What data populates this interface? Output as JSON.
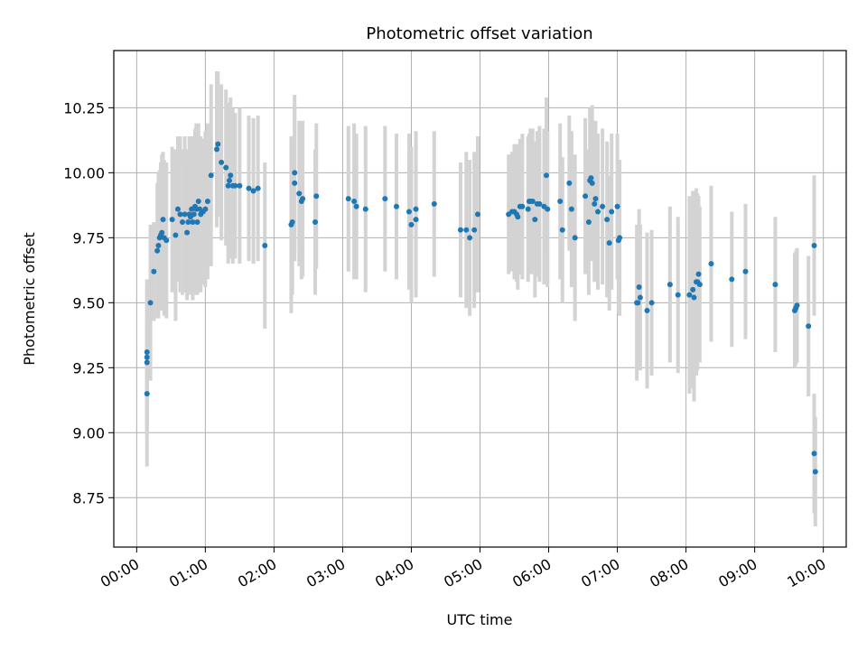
{
  "chart_data": {
    "type": "scatter",
    "title": "Photometric offset variation",
    "xlabel": "UTC time",
    "ylabel": "Photometric offset",
    "xlim": [
      "-00:20",
      "10:20"
    ],
    "ylim": [
      8.56,
      10.47
    ],
    "x_ticks": [
      "00:00",
      "01:00",
      "02:00",
      "03:00",
      "04:00",
      "05:00",
      "06:00",
      "07:00",
      "08:00",
      "09:00",
      "10:00"
    ],
    "y_ticks": [
      "8.75",
      "9.00",
      "9.25",
      "9.50",
      "9.75",
      "10.00",
      "10.25"
    ],
    "grid": true,
    "marker_color": "#1f77b4",
    "errorbar_color": "#d3d3d3",
    "columns": [
      "time",
      "offset",
      "error"
    ],
    "points": [
      [
        "00:09",
        9.15,
        0.28
      ],
      [
        "00:09",
        9.27,
        0.28
      ],
      [
        "00:09",
        9.29,
        0.28
      ],
      [
        "00:09",
        9.31,
        0.28
      ],
      [
        "00:12",
        9.5,
        0.3
      ],
      [
        "00:15",
        9.62,
        0.19
      ],
      [
        "00:18",
        9.7,
        0.26
      ],
      [
        "00:19",
        9.72,
        0.28
      ],
      [
        "00:20",
        9.75,
        0.26
      ],
      [
        "00:21",
        9.76,
        0.28
      ],
      [
        "00:22",
        9.77,
        0.3
      ],
      [
        "00:23",
        9.82,
        0.26
      ],
      [
        "00:24",
        9.75,
        0.3
      ],
      [
        "00:26",
        9.74,
        0.3
      ],
      [
        "00:31",
        9.82,
        0.28
      ],
      [
        "00:34",
        9.76,
        0.33
      ],
      [
        "00:36",
        9.86,
        0.28
      ],
      [
        "00:38",
        9.84,
        0.3
      ],
      [
        "00:40",
        9.81,
        0.28
      ],
      [
        "00:42",
        9.84,
        0.3
      ],
      [
        "00:44",
        9.77,
        0.26
      ],
      [
        "00:45",
        9.81,
        0.28
      ],
      [
        "00:46",
        9.84,
        0.3
      ],
      [
        "00:47",
        9.83,
        0.3
      ],
      [
        "00:48",
        9.86,
        0.28
      ],
      [
        "00:49",
        9.81,
        0.3
      ],
      [
        "00:50",
        9.84,
        0.28
      ],
      [
        "00:51",
        9.87,
        0.3
      ],
      [
        "00:52",
        9.86,
        0.33
      ],
      [
        "00:53",
        9.81,
        0.28
      ],
      [
        "00:54",
        9.89,
        0.3
      ],
      [
        "00:55",
        9.86,
        0.28
      ],
      [
        "00:56",
        9.84,
        0.3
      ],
      [
        "00:58",
        9.85,
        0.28
      ],
      [
        "01:00",
        9.86,
        0.3
      ],
      [
        "01:02",
        9.89,
        0.3
      ],
      [
        "01:05",
        9.99,
        0.35
      ],
      [
        "01:10",
        10.09,
        0.3
      ],
      [
        "01:11",
        10.11,
        0.28
      ],
      [
        "01:14",
        10.04,
        0.3
      ],
      [
        "01:18",
        10.02,
        0.3
      ],
      [
        "01:20",
        9.95,
        0.3
      ],
      [
        "01:21",
        9.97,
        0.3
      ],
      [
        "01:22",
        9.99,
        0.3
      ],
      [
        "01:24",
        9.95,
        0.3
      ],
      [
        "01:26",
        9.95,
        0.28
      ],
      [
        "01:30",
        9.95,
        0.3
      ],
      [
        "01:38",
        9.94,
        0.28
      ],
      [
        "01:42",
        9.93,
        0.28
      ],
      [
        "01:46",
        9.94,
        0.28
      ],
      [
        "01:52",
        9.72,
        0.32
      ],
      [
        "02:15",
        9.8,
        0.34
      ],
      [
        "02:16",
        9.81,
        0.28
      ],
      [
        "02:18",
        9.96,
        0.3
      ],
      [
        "02:18",
        10.0,
        0.3
      ],
      [
        "02:22",
        9.92,
        0.28
      ],
      [
        "02:24",
        9.89,
        0.3
      ],
      [
        "02:25",
        9.9,
        0.3
      ],
      [
        "02:36",
        9.81,
        0.28
      ],
      [
        "02:37",
        9.91,
        0.28
      ],
      [
        "03:05",
        9.9,
        0.28
      ],
      [
        "03:10",
        9.89,
        0.3
      ],
      [
        "03:12",
        9.87,
        0.28
      ],
      [
        "03:20",
        9.86,
        0.32
      ],
      [
        "03:37",
        9.9,
        0.28
      ],
      [
        "03:47",
        9.87,
        0.28
      ],
      [
        "03:58",
        9.85,
        0.3
      ],
      [
        "04:00",
        9.8,
        0.3
      ],
      [
        "04:04",
        9.82,
        0.3
      ],
      [
        "04:04",
        9.86,
        0.3
      ],
      [
        "04:20",
        9.88,
        0.28
      ],
      [
        "04:43",
        9.78,
        0.26
      ],
      [
        "04:48",
        9.78,
        0.3
      ],
      [
        "04:51",
        9.75,
        0.3
      ],
      [
        "04:55",
        9.78,
        0.3
      ],
      [
        "04:58",
        9.84,
        0.3
      ],
      [
        "05:25",
        9.84,
        0.23
      ],
      [
        "05:28",
        9.85,
        0.23
      ],
      [
        "05:30",
        9.85,
        0.26
      ],
      [
        "05:32",
        9.84,
        0.26
      ],
      [
        "05:33",
        9.83,
        0.28
      ],
      [
        "05:35",
        9.87,
        0.26
      ],
      [
        "05:37",
        9.87,
        0.28
      ],
      [
        "05:42",
        9.86,
        0.28
      ],
      [
        "05:43",
        9.89,
        0.26
      ],
      [
        "05:44",
        9.89,
        0.28
      ],
      [
        "05:46",
        9.89,
        0.28
      ],
      [
        "05:48",
        9.82,
        0.3
      ],
      [
        "05:50",
        9.88,
        0.28
      ],
      [
        "05:52",
        9.88,
        0.3
      ],
      [
        "05:56",
        9.87,
        0.3
      ],
      [
        "05:58",
        9.99,
        0.3
      ],
      [
        "05:59",
        9.86,
        0.3
      ],
      [
        "06:10",
        9.89,
        0.3
      ],
      [
        "06:12",
        9.78,
        0.28
      ],
      [
        "06:18",
        9.96,
        0.26
      ],
      [
        "06:20",
        9.86,
        0.3
      ],
      [
        "06:23",
        9.75,
        0.32
      ],
      [
        "06:32",
        9.91,
        0.3
      ],
      [
        "06:35",
        9.81,
        0.28
      ],
      [
        "06:36",
        9.97,
        0.28
      ],
      [
        "06:37",
        9.98,
        0.26
      ],
      [
        "06:38",
        9.96,
        0.3
      ],
      [
        "06:40",
        9.88,
        0.3
      ],
      [
        "06:41",
        9.9,
        0.3
      ],
      [
        "06:43",
        9.85,
        0.3
      ],
      [
        "06:47",
        9.87,
        0.3
      ],
      [
        "06:51",
        9.82,
        0.3
      ],
      [
        "06:53",
        9.73,
        0.26
      ],
      [
        "06:55",
        9.85,
        0.3
      ],
      [
        "07:00",
        9.87,
        0.28
      ],
      [
        "07:01",
        9.74,
        0.28
      ],
      [
        "07:02",
        9.75,
        0.3
      ],
      [
        "07:17",
        9.5,
        0.3
      ],
      [
        "07:18",
        9.5,
        0.26
      ],
      [
        "07:19",
        9.56,
        0.3
      ],
      [
        "07:20",
        9.52,
        0.28
      ],
      [
        "07:26",
        9.47,
        0.3
      ],
      [
        "07:30",
        9.5,
        0.28
      ],
      [
        "07:46",
        9.57,
        0.3
      ],
      [
        "07:53",
        9.53,
        0.3
      ],
      [
        "08:03",
        9.53,
        0.38
      ],
      [
        "08:06",
        9.55,
        0.38
      ],
      [
        "08:07",
        9.52,
        0.4
      ],
      [
        "08:09",
        9.58,
        0.36
      ],
      [
        "08:10",
        9.58,
        0.34
      ],
      [
        "08:11",
        9.61,
        0.3
      ],
      [
        "08:12",
        9.57,
        0.3
      ],
      [
        "08:22",
        9.65,
        0.3
      ],
      [
        "08:40",
        9.59,
        0.26
      ],
      [
        "08:52",
        9.62,
        0.26
      ],
      [
        "09:18",
        9.57,
        0.26
      ],
      [
        "09:35",
        9.47,
        0.22
      ],
      [
        "09:36",
        9.48,
        0.22
      ],
      [
        "09:37",
        9.49,
        0.22
      ],
      [
        "09:47",
        9.41,
        0.27
      ],
      [
        "09:52",
        9.72,
        0.27
      ],
      [
        "09:52",
        8.92,
        0.23
      ],
      [
        "09:53",
        8.85,
        0.21
      ]
    ]
  }
}
